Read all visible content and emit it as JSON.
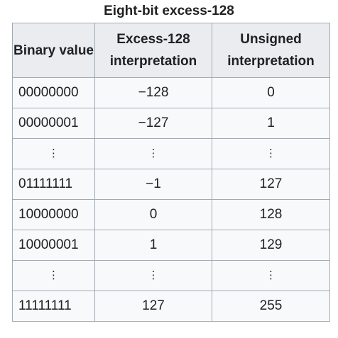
{
  "caption": "Eight-bit excess-128",
  "headers": {
    "binary": "Binary value",
    "excess": "Excess-128 interpretation",
    "unsigned": "Unsigned interpretation"
  },
  "rows": [
    {
      "binary": "00000000",
      "excess": "−128",
      "unsigned": "0"
    },
    {
      "binary": "00000001",
      "excess": "−127",
      "unsigned": "1"
    },
    {
      "binary": "⋮",
      "excess": "⋮",
      "unsigned": "⋮"
    },
    {
      "binary": "01111111",
      "excess": "−1",
      "unsigned": "127"
    },
    {
      "binary": "10000000",
      "excess": "0",
      "unsigned": "128"
    },
    {
      "binary": "10000001",
      "excess": "1",
      "unsigned": "129"
    },
    {
      "binary": "⋮",
      "excess": "⋮",
      "unsigned": "⋮"
    },
    {
      "binary": "11111111",
      "excess": "127",
      "unsigned": "255"
    }
  ]
}
